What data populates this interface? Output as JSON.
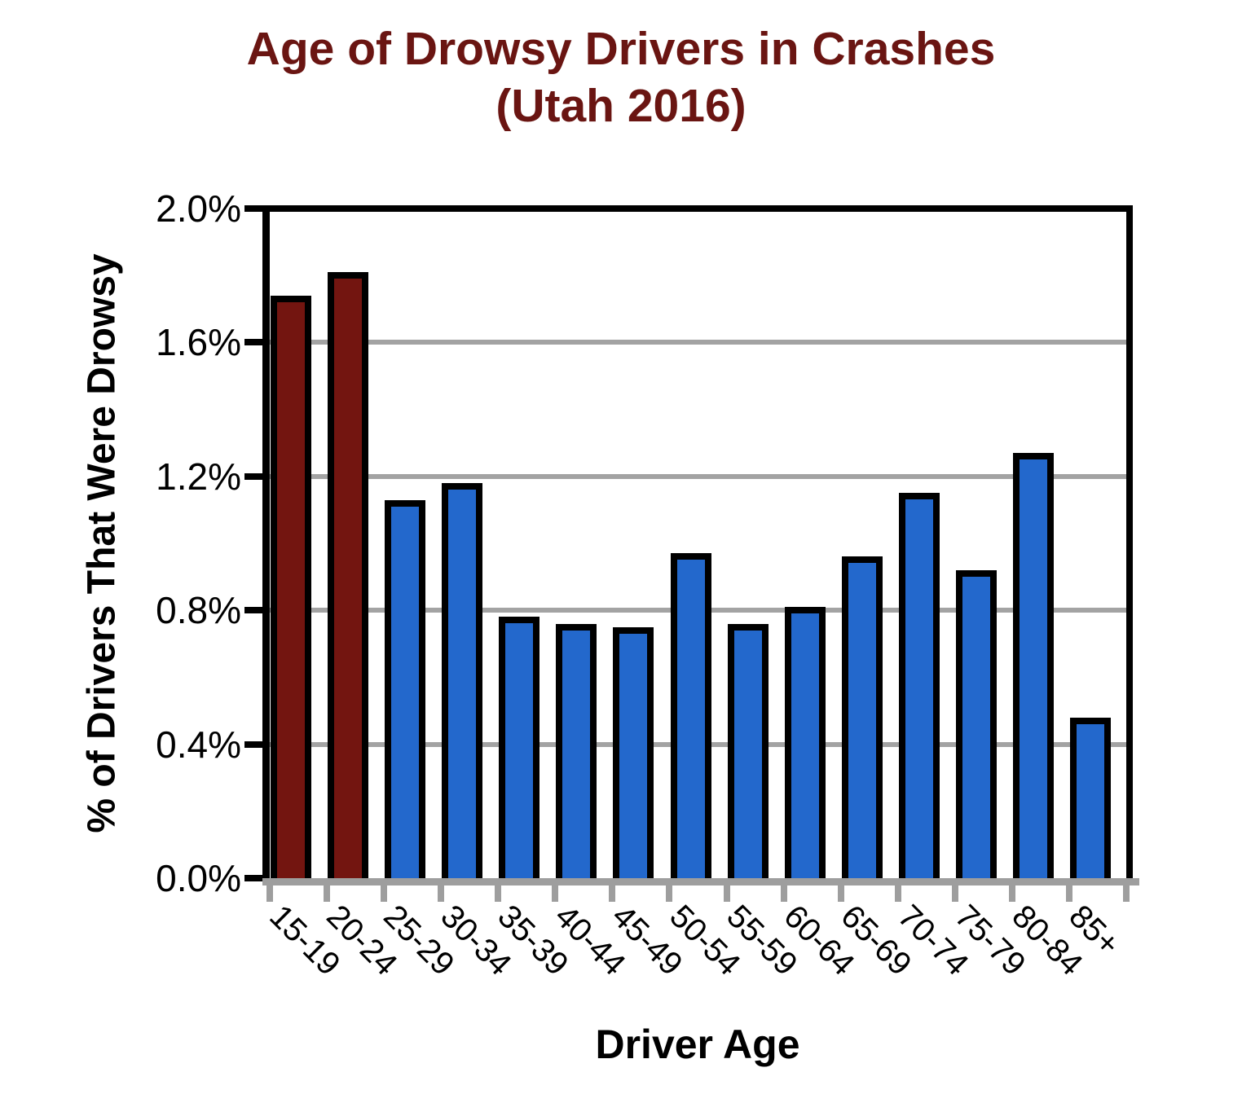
{
  "title": {
    "line1": "Age of Drowsy Drivers in Crashes",
    "line2": "(Utah 2016)"
  },
  "colors": {
    "title_text": "#6A1512",
    "highlight_bar": "#731510",
    "default_bar": "#2368CC",
    "bar_border": "#000000",
    "gridline": "#A3A3A3",
    "x_axis": "#9E9E9E",
    "y_axis": "#000000"
  },
  "chart_data": {
    "type": "bar",
    "title": "Age of Drowsy Drivers in Crashes (Utah 2016)",
    "xlabel": "Driver Age",
    "ylabel": "% of Drivers That Were Drowsy",
    "categories": [
      "15-19",
      "20-24",
      "25-29",
      "30-34",
      "35-39",
      "40-44",
      "45-49",
      "50-54",
      "55-59",
      "60-64",
      "65-69",
      "70-74",
      "75-79",
      "80-84",
      "85+"
    ],
    "values": [
      1.74,
      1.81,
      1.13,
      1.18,
      0.78,
      0.76,
      0.75,
      0.97,
      0.76,
      0.81,
      0.96,
      1.15,
      0.92,
      1.27,
      0.48
    ],
    "unit": "%",
    "bar_colors": [
      "#731510",
      "#731510",
      "#2368CC",
      "#2368CC",
      "#2368CC",
      "#2368CC",
      "#2368CC",
      "#2368CC",
      "#2368CC",
      "#2368CC",
      "#2368CC",
      "#2368CC",
      "#2368CC",
      "#2368CC",
      "#2368CC"
    ],
    "highlighted_categories": [
      "15-19",
      "20-24"
    ],
    "ylim": [
      0,
      2.0
    ],
    "ytick_step": 0.4,
    "ytick_labels": [
      "0.0%",
      "0.4%",
      "0.8%",
      "1.2%",
      "1.6%",
      "2.0%"
    ],
    "grid": true,
    "legend_position": "none"
  }
}
